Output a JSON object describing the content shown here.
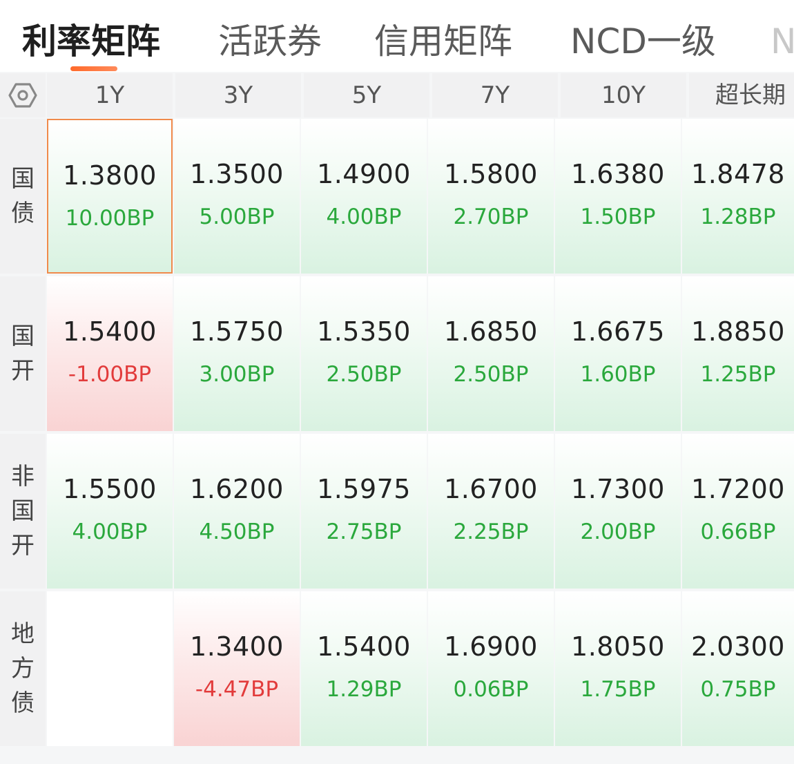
{
  "tabs": [
    {
      "label": "利率矩阵",
      "active": true
    },
    {
      "label": "活跃券",
      "active": false
    },
    {
      "label": "信用矩阵",
      "active": false
    },
    {
      "label": "NCD一级",
      "active": false
    },
    {
      "label": "N",
      "active": false
    }
  ],
  "icons": {
    "settings": "gear-hexagon-icon"
  },
  "colors": {
    "accent": "#ff6a2b",
    "up": "#2aa83c",
    "down": "#e23b3b",
    "selected_border": "#f08a4b"
  },
  "columns": [
    "1Y",
    "3Y",
    "5Y",
    "7Y",
    "10Y",
    "超长期"
  ],
  "rows": [
    {
      "label_chars": [
        "国",
        "债"
      ],
      "cells": [
        {
          "yield": "1.3800",
          "change": "10.00BP",
          "dir": "up",
          "selected": true
        },
        {
          "yield": "1.3500",
          "change": "5.00BP",
          "dir": "up"
        },
        {
          "yield": "1.4900",
          "change": "4.00BP",
          "dir": "up"
        },
        {
          "yield": "1.5800",
          "change": "2.70BP",
          "dir": "up"
        },
        {
          "yield": "1.6380",
          "change": "1.50BP",
          "dir": "up"
        },
        {
          "yield": "1.8478",
          "change": "1.28BP",
          "dir": "up"
        }
      ]
    },
    {
      "label_chars": [
        "国",
        "开"
      ],
      "cells": [
        {
          "yield": "1.5400",
          "change": "-1.00BP",
          "dir": "down"
        },
        {
          "yield": "1.5750",
          "change": "3.00BP",
          "dir": "up"
        },
        {
          "yield": "1.5350",
          "change": "2.50BP",
          "dir": "up"
        },
        {
          "yield": "1.6850",
          "change": "2.50BP",
          "dir": "up"
        },
        {
          "yield": "1.6675",
          "change": "1.60BP",
          "dir": "up"
        },
        {
          "yield": "1.8850",
          "change": "1.25BP",
          "dir": "up"
        }
      ]
    },
    {
      "label_chars": [
        "非",
        "国",
        "开"
      ],
      "cells": [
        {
          "yield": "1.5500",
          "change": "4.00BP",
          "dir": "up"
        },
        {
          "yield": "1.6200",
          "change": "4.50BP",
          "dir": "up"
        },
        {
          "yield": "1.5975",
          "change": "2.75BP",
          "dir": "up"
        },
        {
          "yield": "1.6700",
          "change": "2.25BP",
          "dir": "up"
        },
        {
          "yield": "1.7300",
          "change": "2.00BP",
          "dir": "up"
        },
        {
          "yield": "1.7200",
          "change": "0.66BP",
          "dir": "up"
        }
      ]
    },
    {
      "label_chars": [
        "地",
        "方",
        "债"
      ],
      "cells": [
        {
          "yield": "",
          "change": "",
          "dir": "empty"
        },
        {
          "yield": "1.3400",
          "change": "-4.47BP",
          "dir": "down"
        },
        {
          "yield": "1.5400",
          "change": "1.29BP",
          "dir": "up"
        },
        {
          "yield": "1.6900",
          "change": "0.06BP",
          "dir": "up"
        },
        {
          "yield": "1.8050",
          "change": "1.75BP",
          "dir": "up"
        },
        {
          "yield": "2.0300",
          "change": "0.75BP",
          "dir": "up"
        }
      ]
    }
  ]
}
